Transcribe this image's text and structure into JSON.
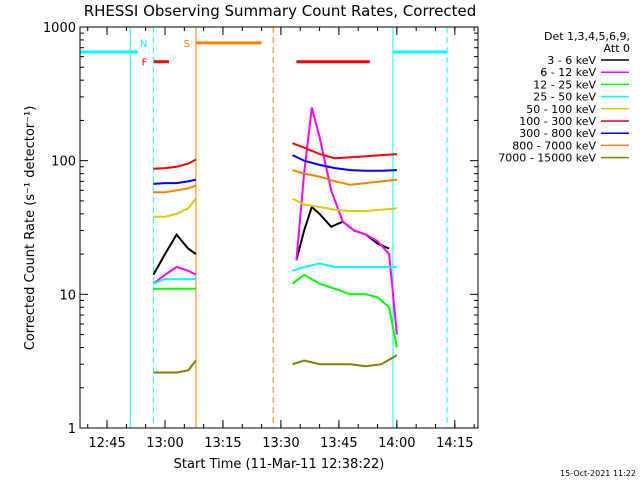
{
  "chart_data": {
    "type": "line",
    "title": "RHESSI Observing Summary Count Rates, Corrected",
    "xlabel": "Start Time (11-Mar-11 12:38:22)",
    "ylabel": "Corrected Count Rate (s⁻¹ detector⁻¹)",
    "y_scale": "log",
    "ylim": [
      1,
      1000
    ],
    "xlim": [
      "12:38",
      "14:21"
    ],
    "x_ticks": [
      "12:45",
      "13:00",
      "13:15",
      "13:30",
      "13:45",
      "14:00",
      "14:15"
    ],
    "y_ticks": [
      "1",
      "10",
      "100",
      "1000"
    ],
    "legend": {
      "placement": "right",
      "header": [
        "Det 1,3,4,5,6,9,",
        "Att 0"
      ]
    },
    "series": [
      {
        "name": "3 - 6 keV",
        "color": "#000000",
        "segments": [
          {
            "x": [
              "12:57",
              "13:00",
              "13:03",
              "13:06",
              "13:08"
            ],
            "y": [
              14,
              20,
              28,
              22,
              20
            ]
          },
          {
            "x": [
              "13:34",
              "13:36",
              "13:38",
              "13:40",
              "13:43",
              "13:46",
              "13:49",
              "13:52",
              "13:55",
              "13:58"
            ],
            "y": [
              18,
              30,
              45,
              40,
              32,
              35,
              30,
              28,
              24,
              22
            ]
          }
        ]
      },
      {
        "name": "6 - 12 keV",
        "color": "#ff00ff",
        "segments": [
          {
            "x": [
              "12:57",
              "13:00",
              "13:03",
              "13:06",
              "13:08"
            ],
            "y": [
              12,
              14,
              16,
              15,
              14
            ]
          },
          {
            "x": [
              "13:34",
              "13:36",
              "13:38",
              "13:40",
              "13:43",
              "13:46",
              "13:49",
              "13:52",
              "13:55",
              "13:58",
              "14:00"
            ],
            "y": [
              18,
              80,
              250,
              150,
              60,
              35,
              30,
              28,
              25,
              20,
              5
            ]
          }
        ]
      },
      {
        "name": "12 - 25 keV",
        "color": "#00ff00",
        "segments": [
          {
            "x": [
              "12:57",
              "13:00",
              "13:03",
              "13:06",
              "13:08"
            ],
            "y": [
              11,
              11,
              11,
              11,
              11
            ]
          },
          {
            "x": [
              "13:33",
              "13:36",
              "13:40",
              "13:44",
              "13:48",
              "13:52",
              "13:55",
              "13:58",
              "14:00"
            ],
            "y": [
              12,
              14,
              12,
              11,
              10,
              10,
              9.5,
              8,
              4
            ]
          }
        ]
      },
      {
        "name": "25 - 50 keV",
        "color": "#00ffff",
        "segments": [
          {
            "x": [
              "12:57",
              "13:00",
              "13:03",
              "13:06",
              "13:08"
            ],
            "y": [
              12,
              13,
              13,
              13,
              13
            ]
          },
          {
            "x": [
              "13:33",
              "13:36",
              "13:40",
              "13:44",
              "13:48",
              "13:52",
              "13:56",
              "14:00"
            ],
            "y": [
              15,
              16,
              17,
              16,
              16,
              16,
              16,
              16
            ]
          }
        ]
      },
      {
        "name": "50 - 100 keV",
        "color": "#ddcc00",
        "segments": [
          {
            "x": [
              "12:57",
              "13:00",
              "13:03",
              "13:06",
              "13:08"
            ],
            "y": [
              38,
              38,
              40,
              44,
              52
            ]
          },
          {
            "x": [
              "13:33",
              "13:36",
              "13:40",
              "13:44",
              "13:48",
              "13:52",
              "13:56",
              "14:00"
            ],
            "y": [
              52,
              47,
              45,
              43,
              42,
              42,
              43,
              44
            ]
          }
        ]
      },
      {
        "name": "100 - 300 keV",
        "color": "#ff0000",
        "segments": [
          {
            "x": [
              "12:57",
              "13:00",
              "13:03",
              "13:06",
              "13:08"
            ],
            "y": [
              87,
              88,
              90,
              95,
              102
            ]
          },
          {
            "x": [
              "13:33",
              "13:36",
              "13:40",
              "13:44",
              "13:48",
              "13:52",
              "13:56",
              "14:00"
            ],
            "y": [
              135,
              125,
              112,
              104,
              106,
              108,
              110,
              112
            ]
          }
        ]
      },
      {
        "name": "300 - 800 keV",
        "color": "#0000ff",
        "segments": [
          {
            "x": [
              "12:57",
              "13:00",
              "13:03",
              "13:06",
              "13:08"
            ],
            "y": [
              67,
              68,
              68,
              70,
              72
            ]
          },
          {
            "x": [
              "13:33",
              "13:36",
              "13:40",
              "13:44",
              "13:48",
              "13:52",
              "13:56",
              "14:00"
            ],
            "y": [
              110,
              100,
              93,
              88,
              85,
              84,
              84,
              85
            ]
          }
        ]
      },
      {
        "name": "800 - 7000 keV",
        "color": "#ff8000",
        "segments": [
          {
            "x": [
              "12:57",
              "13:00",
              "13:03",
              "13:06",
              "13:08"
            ],
            "y": [
              58,
              58,
              60,
              62,
              65
            ]
          },
          {
            "x": [
              "13:33",
              "13:36",
              "13:40",
              "13:44",
              "13:48",
              "13:52",
              "13:56",
              "14:00"
            ],
            "y": [
              85,
              80,
              76,
              70,
              66,
              68,
              70,
              72
            ]
          }
        ]
      },
      {
        "name": "7000 - 15000 keV",
        "color": "#808000",
        "segments": [
          {
            "x": [
              "12:57",
              "13:00",
              "13:03",
              "13:06",
              "13:08"
            ],
            "y": [
              2.6,
              2.6,
              2.6,
              2.7,
              3.2
            ]
          },
          {
            "x": [
              "13:33",
              "13:36",
              "13:40",
              "13:44",
              "13:48",
              "13:52",
              "13:56",
              "14:00"
            ],
            "y": [
              3.0,
              3.2,
              3.0,
              3.0,
              3.0,
              2.9,
              3.0,
              3.5
            ]
          }
        ]
      }
    ],
    "flags": [
      {
        "label": "",
        "color": "#00ffff",
        "level": 650,
        "x": [
          "12:38",
          "12:53"
        ]
      },
      {
        "label": "N",
        "color": "#00ffff",
        "level": 760,
        "x": [
          "12:57",
          "12:57"
        ]
      },
      {
        "label": "F",
        "color": "#ff0000",
        "level": 550,
        "x": [
          "12:57",
          "13:01"
        ]
      },
      {
        "label": "S",
        "color": "#ff8000",
        "level": 760,
        "x": [
          "13:08",
          "13:25"
        ]
      },
      {
        "label": "",
        "color": "#ff0000",
        "level": 550,
        "x": [
          "13:34",
          "13:53"
        ]
      },
      {
        "label": "",
        "color": "#00ffff",
        "level": 650,
        "x": [
          "13:59",
          "14:13"
        ]
      }
    ],
    "vertical_markers": [
      {
        "x": "12:38",
        "color": "#00ffff",
        "style": "solid"
      },
      {
        "x": "12:51",
        "color": "#00ffff",
        "style": "solid"
      },
      {
        "x": "12:57",
        "color": "#00ffff",
        "style": "dashed"
      },
      {
        "x": "13:08",
        "color": "#ff8000",
        "style": "solid"
      },
      {
        "x": "13:28",
        "color": "#ff8000",
        "style": "dashed"
      },
      {
        "x": "13:59",
        "color": "#00ffff",
        "style": "solid"
      },
      {
        "x": "14:13",
        "color": "#00ffff",
        "style": "dashed"
      }
    ],
    "footer_date": "15-Oct-2021 11:22"
  }
}
